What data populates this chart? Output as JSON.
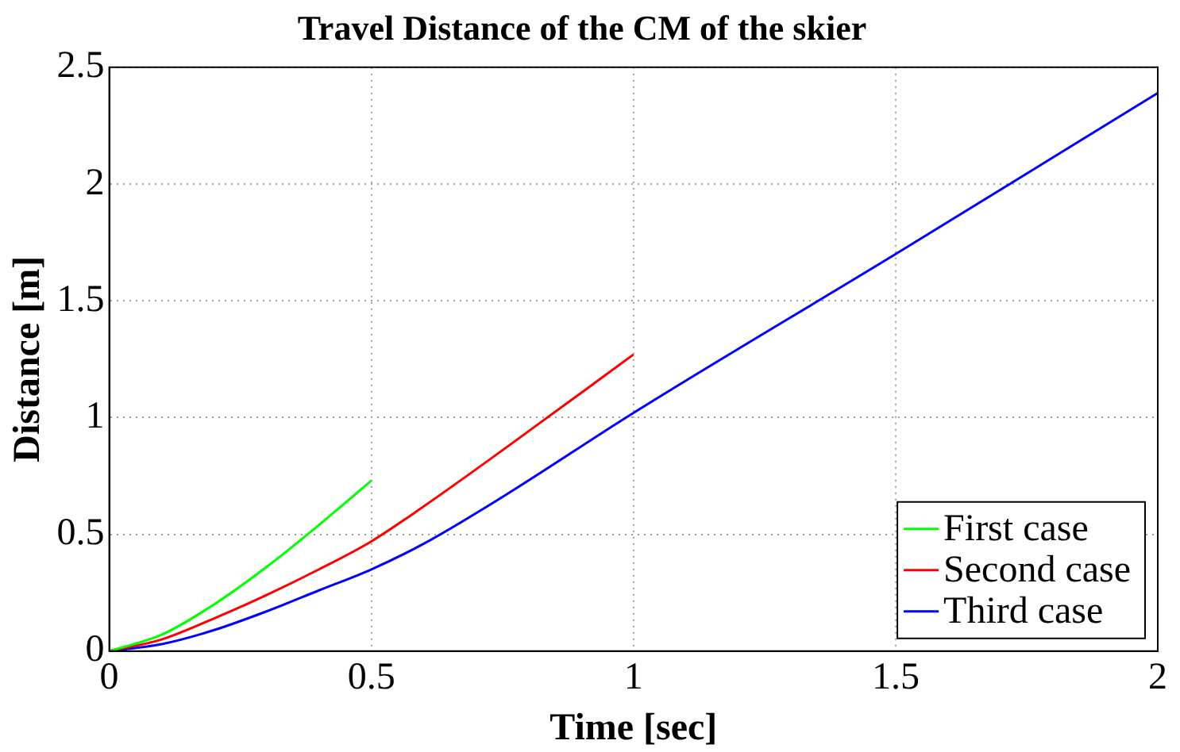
{
  "chart_data": {
    "type": "line",
    "title": "Travel Distance of the CM of the skier",
    "xlabel": "Time [sec]",
    "ylabel": "Distance [m]",
    "xlim": [
      0,
      2
    ],
    "xticks": [
      0,
      0.5,
      1,
      1.5,
      2
    ],
    "ylim": [
      0,
      2.5
    ],
    "yticks": [
      0,
      0.5,
      1,
      1.5,
      2,
      2.5
    ],
    "grid": true,
    "legend": "bottom right",
    "marker": "none",
    "line_style": "solid",
    "series": [
      {
        "name": "First case",
        "color": "#00ff00",
        "x": [
          0,
          0.1,
          0.2,
          0.3,
          0.4,
          0.5
        ],
        "values": [
          0,
          0.07,
          0.2,
          0.36,
          0.54,
          0.73
        ]
      },
      {
        "name": "Second case",
        "color": "#ff0000",
        "x": [
          0,
          0.1,
          0.2,
          0.3,
          0.4,
          0.5,
          0.6,
          0.75,
          1
        ],
        "values": [
          0,
          0.05,
          0.14,
          0.24,
          0.35,
          0.47,
          0.62,
          0.86,
          1.27
        ]
      },
      {
        "name": "Third case",
        "color": "#0000ff",
        "x": [
          0,
          0.1,
          0.2,
          0.3,
          0.4,
          0.5,
          0.6,
          0.75,
          1,
          1.5,
          2
        ],
        "values": [
          0,
          0.03,
          0.09,
          0.17,
          0.26,
          0.35,
          0.46,
          0.66,
          1.02,
          1.7,
          2.39
        ]
      }
    ]
  }
}
